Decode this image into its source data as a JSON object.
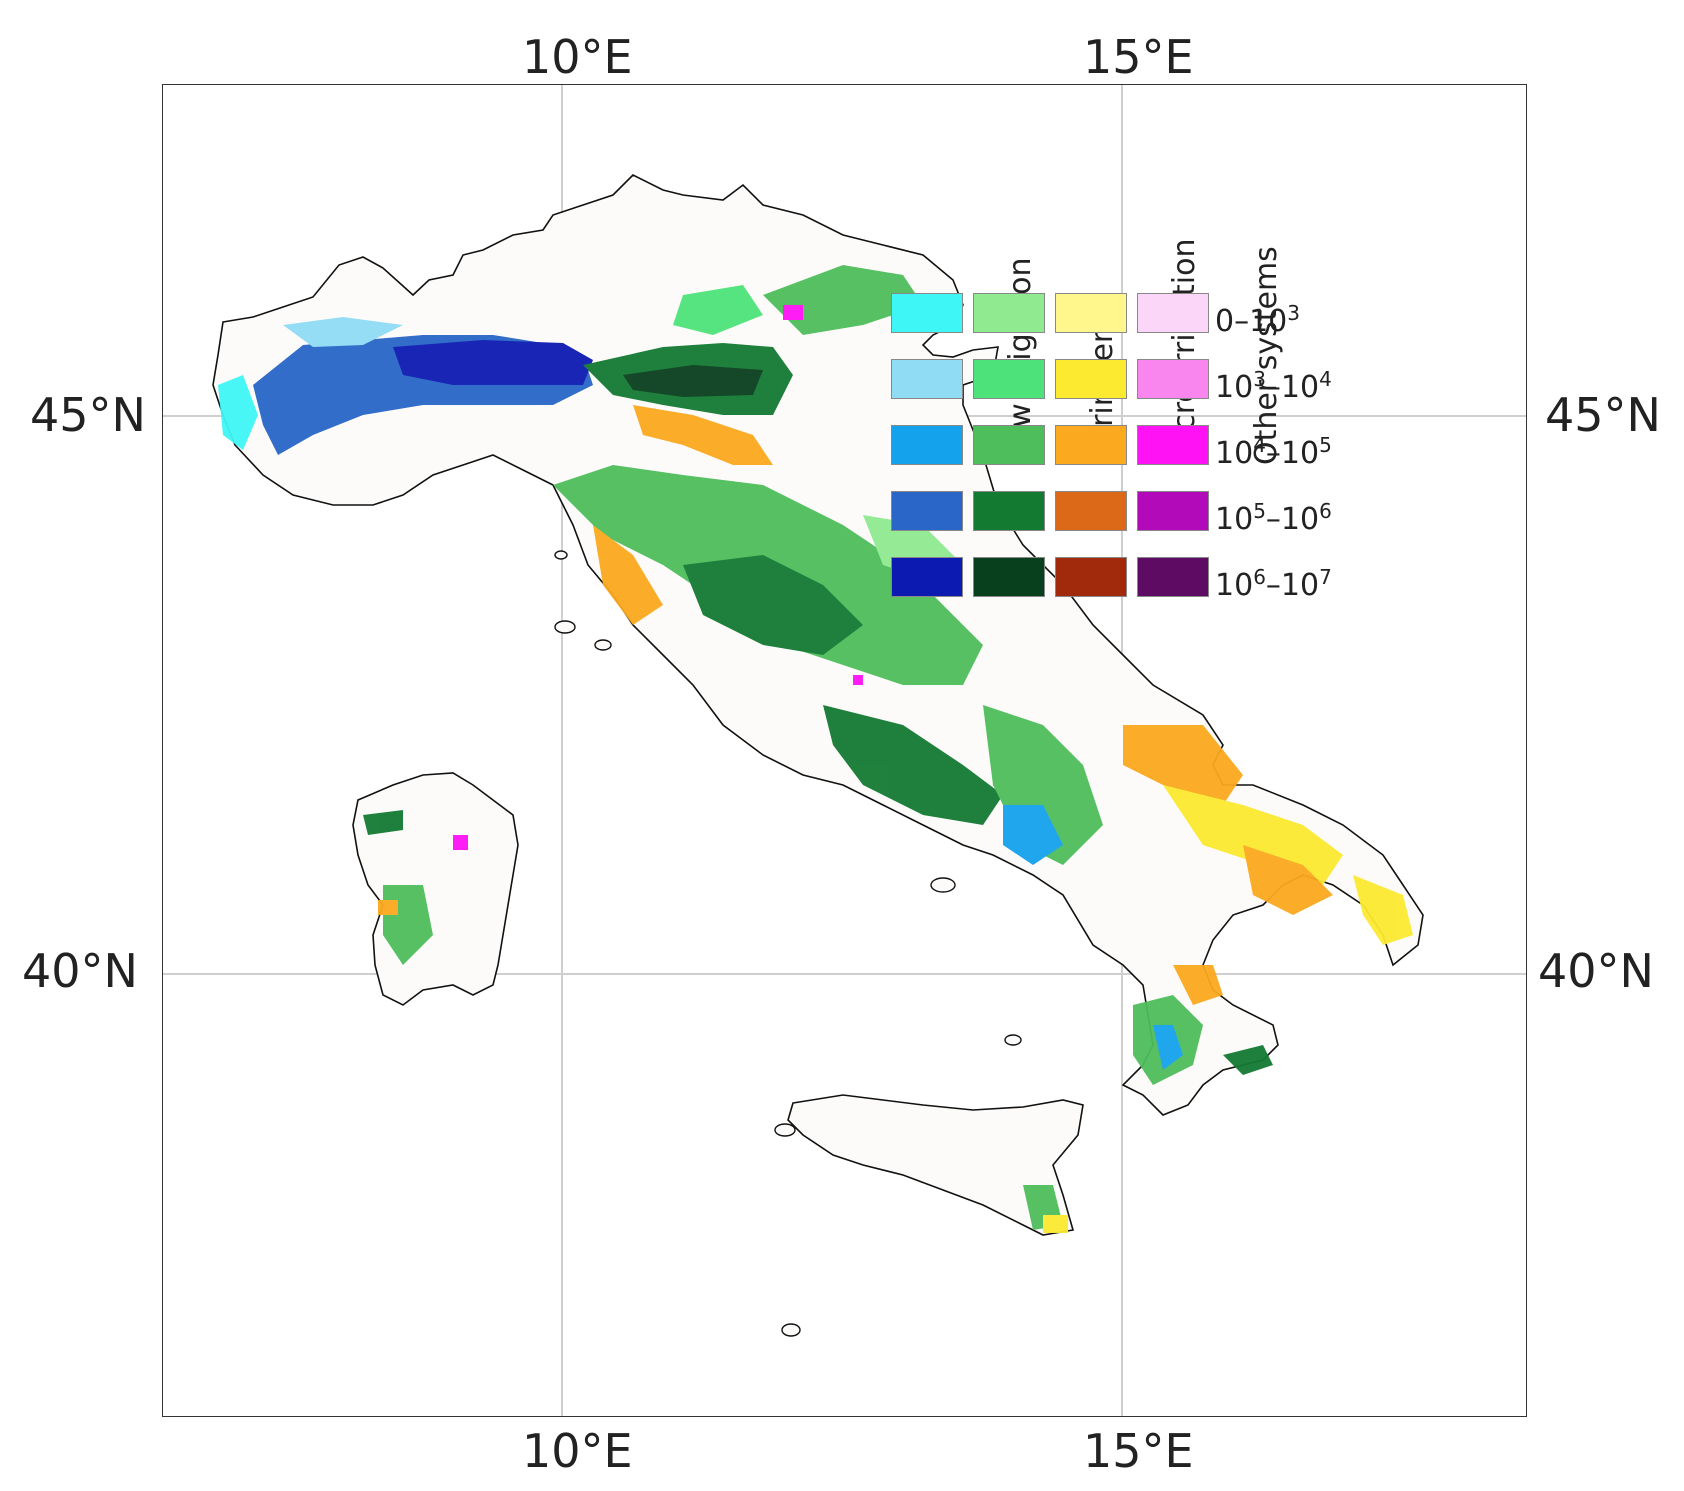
{
  "axes": {
    "lon_ticks": [
      "10°E",
      "15°E"
    ],
    "lat_ticks": [
      "45°N",
      "40°N"
    ]
  },
  "legend": {
    "columns": [
      "flow Irrigation",
      "Sprinklers",
      "Micro Irrigation",
      "Other systems"
    ],
    "ranges": [
      {
        "base": "0–10",
        "exp": "3"
      },
      {
        "base": "10",
        "exp": "3",
        "sep": "–10",
        "exp2": "4"
      },
      {
        "base": "10",
        "exp": "4",
        "sep": "–10",
        "exp2": "5"
      },
      {
        "base": "10",
        "exp": "5",
        "sep": "–10",
        "exp2": "6"
      },
      {
        "base": "10",
        "exp": "6",
        "sep": "–10",
        "exp2": "7"
      }
    ],
    "colors": [
      [
        "#3ff6f6",
        "#90ea90",
        "#fff68c",
        "#fcd6f8"
      ],
      [
        "#8fdcf4",
        "#4ee37a",
        "#fcea30",
        "#f986ee"
      ],
      [
        "#14a2ec",
        "#4ebd5c",
        "#fba91e",
        "#ff12f4"
      ],
      [
        "#2966c8",
        "#137a32",
        "#dc6918",
        "#b20ab8"
      ],
      [
        "#0c1ab2",
        "#083f1d",
        "#a1290c",
        "#5d0b63"
      ]
    ]
  }
}
